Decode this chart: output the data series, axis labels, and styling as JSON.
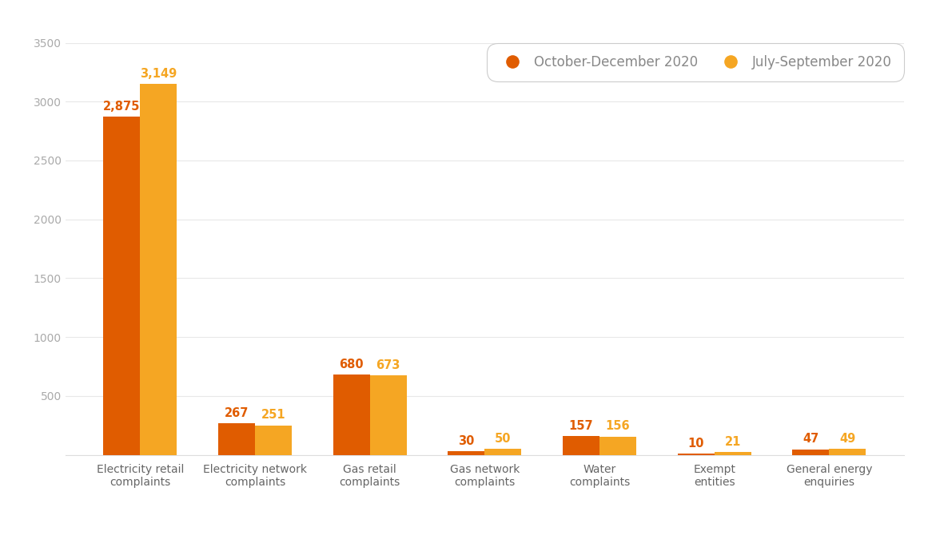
{
  "categories": [
    "Electricity retail\ncomplaints",
    "Electricity network\ncomplaints",
    "Gas retail\ncomplaints",
    "Gas network\ncomplaints",
    "Water\ncomplaints",
    "Exempt\nentities",
    "General energy\nenquiries"
  ],
  "series1_label": "October-December 2020",
  "series2_label": "July-September 2020",
  "series1_values": [
    2875,
    267,
    680,
    30,
    157,
    10,
    47
  ],
  "series2_values": [
    3149,
    251,
    673,
    50,
    156,
    21,
    49
  ],
  "series1_color": "#E05C00",
  "series2_color": "#F5A623",
  "bar_width": 0.32,
  "ylim": [
    0,
    3500
  ],
  "yticks": [
    0,
    500,
    1000,
    1500,
    2000,
    2500,
    3000,
    3500
  ],
  "background_color": "#ffffff",
  "value_fontsize": 10.5,
  "tick_fontsize": 10,
  "legend_fontsize": 12,
  "legend_text_color": "#888888",
  "tick_color": "#aaaaaa",
  "xtick_color": "#666666",
  "grid_color": "#e8e8e8"
}
